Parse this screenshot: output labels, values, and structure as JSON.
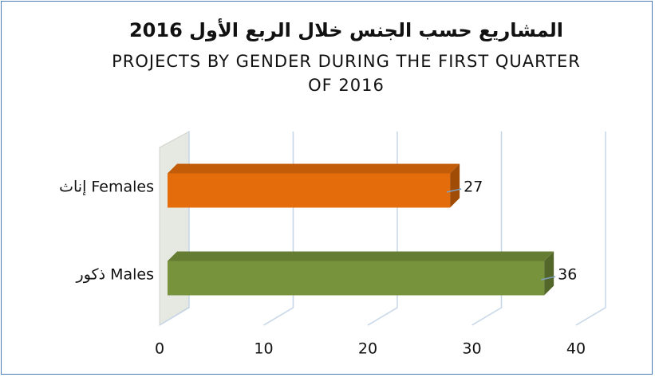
{
  "chart_data": {
    "type": "bar3d_horizontal",
    "title": "المشاريع حسب الجنس خلال الربع الأول 2016",
    "subtitle": "PROJECTS BY GENDER DURING THE FIRST QUARTER OF 2016",
    "categories": [
      "إناث Females",
      "ذكور Males"
    ],
    "values": [
      27,
      36
    ],
    "colors": [
      "#e46c0a",
      "#77933c"
    ],
    "xlim": [
      0,
      40
    ],
    "xticks": [
      0,
      10,
      20,
      30,
      40
    ],
    "grid": true
  }
}
